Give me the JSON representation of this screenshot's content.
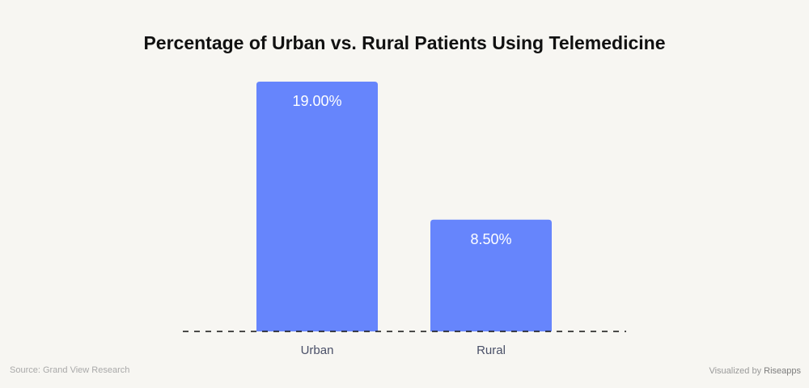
{
  "chart_data": {
    "type": "bar",
    "title": "Percentage of Urban vs. Rural Patients Using Telemedicine",
    "categories": [
      "Urban",
      "Rural"
    ],
    "values": [
      19.0,
      8.5
    ],
    "data_labels": [
      "19.00%",
      "8.50%"
    ],
    "xlabel": "",
    "ylabel": "",
    "ylim": [
      0,
      19.0
    ],
    "grid": false,
    "legend": "none",
    "bar_color": "#6685fc",
    "baseline": "dashed"
  },
  "footer": {
    "source": "Source: Grand View Research",
    "visualized_prefix": "Visualized by ",
    "brand": "Riseapps"
  },
  "colors": {
    "background": "#f7f6f2",
    "bar": "#6685fc",
    "bar_label": "#ffffff",
    "axis_label": "#4a5068",
    "baseline": "#111111"
  }
}
